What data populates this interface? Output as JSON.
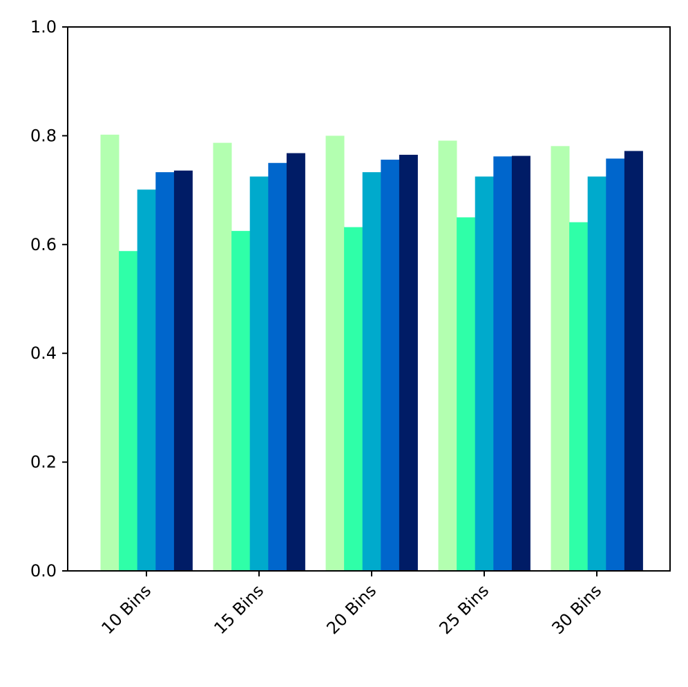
{
  "chart_data": {
    "type": "bar",
    "categories": [
      "10 Bins",
      "15 Bins",
      "20 Bins",
      "25 Bins",
      "30 Bins"
    ],
    "series": [
      {
        "color": "#b3ffb0",
        "values": [
          0.802,
          0.787,
          0.8,
          0.791,
          0.781
        ]
      },
      {
        "color": "#2fffa8",
        "values": [
          0.588,
          0.625,
          0.632,
          0.65,
          0.641
        ]
      },
      {
        "color": "#00aacc",
        "values": [
          0.701,
          0.725,
          0.733,
          0.725,
          0.725
        ]
      },
      {
        "color": "#0066cc",
        "values": [
          0.733,
          0.75,
          0.756,
          0.762,
          0.758
        ]
      },
      {
        "color": "#001c66",
        "values": [
          0.736,
          0.768,
          0.765,
          0.763,
          0.772
        ]
      }
    ],
    "title": "",
    "xlabel": "",
    "ylabel": "",
    "ylim": [
      0,
      1.0
    ],
    "yticks": [
      "0.0",
      "0.2",
      "0.4",
      "0.6",
      "0.8",
      "1.0"
    ],
    "xtick_rotation": 45,
    "grid": false,
    "legend": "none"
  }
}
